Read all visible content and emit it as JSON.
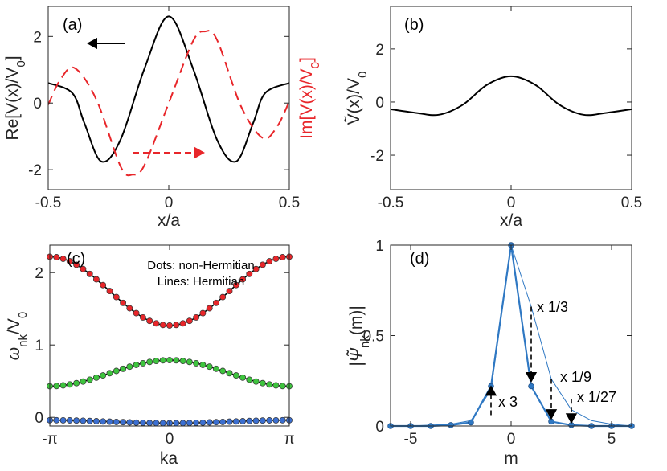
{
  "chart_data": [
    {
      "panel": "(a)",
      "type": "line",
      "xlabel": "x/a",
      "ylabel_left": "Re[V(x)/V0]",
      "ylabel_right": "Im[V(x)/V0]",
      "xlim": [
        -0.5,
        0.5
      ],
      "ylim": [
        -2.6,
        2.9
      ],
      "xticks": [
        "-0.5",
        "0",
        "0.5"
      ],
      "yticks": [
        "-2",
        "0",
        "2"
      ],
      "colors": {
        "re": "#000000",
        "im": "#e8262a"
      },
      "series": [
        {
          "name": "Re[V(x)/V0]",
          "style": "solid",
          "color": "#000000",
          "x": [
            -0.5,
            -0.4,
            -0.35,
            -0.28,
            -0.2,
            -0.1,
            0,
            0.1,
            0.2,
            0.28,
            0.35,
            0.4,
            0.5
          ],
          "y": [
            0.6,
            0.3,
            -0.6,
            -1.75,
            -1.1,
            1.05,
            2.6,
            1.05,
            -1.1,
            -1.75,
            -0.6,
            0.3,
            0.6
          ]
        },
        {
          "name": "Im[V(x)/V0]",
          "style": "dashed",
          "color": "#e8262a",
          "x": [
            -0.5,
            -0.45,
            -0.39,
            -0.3,
            -0.2,
            -0.15,
            -0.1,
            0,
            0.1,
            0.15,
            0.2,
            0.3,
            0.39,
            0.45,
            0.5
          ],
          "y": [
            -0.05,
            0.7,
            1.05,
            0.1,
            -1.9,
            -2.15,
            -1.85,
            0,
            1.85,
            2.15,
            1.9,
            -0.1,
            -1.05,
            -0.7,
            0.05
          ]
        }
      ]
    },
    {
      "panel": "(b)",
      "type": "line",
      "xlabel": "x/a",
      "ylabel": "Ṽ(x)/V0",
      "xlim": [
        -0.5,
        0.5
      ],
      "ylim": [
        -3.3,
        3.6
      ],
      "xticks": [
        "-0.5",
        "0",
        "0.5"
      ],
      "yticks": [
        "-2",
        "0",
        "2"
      ],
      "series": [
        {
          "name": "Ṽ(x)/V0",
          "style": "solid",
          "color": "#000000",
          "x": [
            -0.5,
            -0.4,
            -0.3,
            -0.2,
            -0.1,
            0,
            0.1,
            0.2,
            0.3,
            0.4,
            0.5
          ],
          "y": [
            -0.27,
            -0.4,
            -0.48,
            -0.1,
            0.65,
            0.97,
            0.65,
            -0.1,
            -0.48,
            -0.4,
            -0.27
          ]
        }
      ]
    },
    {
      "panel": "(c)",
      "type": "line",
      "xlabel": "ka",
      "ylabel": "ωnk/V0",
      "xlim": [
        -3.1416,
        3.1416
      ],
      "ylim": [
        -0.12,
        2.38
      ],
      "xticks": [
        "-π",
        "0",
        "π"
      ],
      "yticks": [
        "0",
        "1",
        "2"
      ],
      "annotation": [
        "Dots: non-Hermitian",
        "Lines: Hermitian"
      ],
      "bands": [
        {
          "name": "band 3",
          "color": "#e8262a",
          "edge": 2.22,
          "center": 1.27
        },
        {
          "name": "band 2",
          "color": "#3ec43e",
          "edge": 0.43,
          "center": 0.79
        },
        {
          "name": "band 1",
          "color": "#3b6fd1",
          "edge": -0.04,
          "center": -0.08
        }
      ]
    },
    {
      "panel": "(d)",
      "type": "line",
      "xlabel": "m",
      "ylabel": "|Ψ̃nk(m)|",
      "xlim": [
        -6,
        6
      ],
      "ylim": [
        0,
        1
      ],
      "xticks": [
        "-5",
        "0",
        "5"
      ],
      "yticks": [
        "0",
        "0.5",
        "1"
      ],
      "color": "#2f78c3",
      "series": [
        {
          "name": "thick",
          "m": [
            -6,
            -5,
            -4,
            -3,
            -2,
            -1,
            0,
            1,
            2,
            3,
            4,
            5,
            6
          ],
          "values": [
            0,
            0,
            0,
            0.005,
            0.02,
            0.22,
            1,
            0.22,
            0.025,
            0.005,
            0,
            0,
            0
          ]
        },
        {
          "name": "thin",
          "m": [
            -6,
            -5,
            -4,
            -3,
            -2,
            -1,
            0,
            1,
            2,
            3,
            4,
            5,
            6
          ],
          "values": [
            0,
            0,
            0.005,
            0.01,
            0.03,
            0.2,
            1,
            0.66,
            0.26,
            0.09,
            0.03,
            0.01,
            0
          ]
        }
      ],
      "annotations": [
        "x 1/3",
        "x 1/9",
        "x 1/27",
        "x 3"
      ]
    }
  ]
}
